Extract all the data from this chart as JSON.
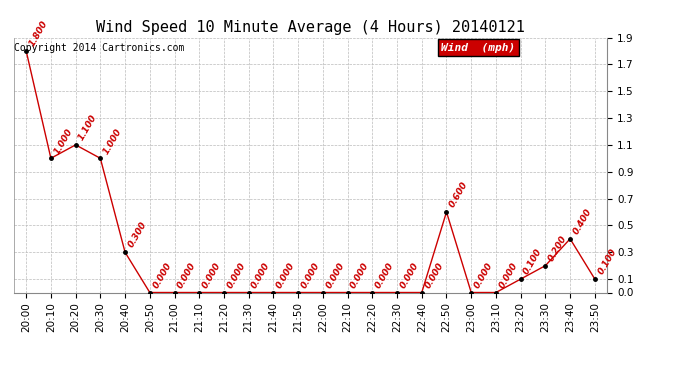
{
  "title": "Wind Speed 10 Minute Average (4 Hours) 20140121",
  "copyright": "Copyright 2014 Cartronics.com",
  "legend_label": "Wind  (mph)",
  "x_labels": [
    "20:00",
    "20:10",
    "20:20",
    "20:30",
    "20:40",
    "20:50",
    "21:00",
    "21:10",
    "21:20",
    "21:30",
    "21:40",
    "21:50",
    "22:00",
    "22:10",
    "22:20",
    "22:30",
    "22:40",
    "22:50",
    "23:00",
    "23:10",
    "23:20",
    "23:30",
    "23:40",
    "23:50"
  ],
  "y_values": [
    1.8,
    1.0,
    1.1,
    1.0,
    0.3,
    0.0,
    0.0,
    0.0,
    0.0,
    0.0,
    0.0,
    0.0,
    0.0,
    0.0,
    0.0,
    0.0,
    0.0,
    0.6,
    0.0,
    0.0,
    0.1,
    0.2,
    0.4,
    0.1
  ],
  "ylim": [
    0.0,
    1.9
  ],
  "yticks": [
    0.0,
    0.1,
    0.3,
    0.5,
    0.7,
    0.9,
    1.1,
    1.3,
    1.5,
    1.7,
    1.9
  ],
  "line_color": "#cc0000",
  "dot_color": "#000000",
  "label_color": "#cc0000",
  "legend_bg": "#cc0000",
  "legend_text_color": "#ffffff",
  "bg_color": "#ffffff",
  "grid_color": "#bbbbbb",
  "title_fontsize": 11,
  "label_fontsize": 6.5,
  "copyright_fontsize": 7,
  "tick_fontsize": 7.5
}
